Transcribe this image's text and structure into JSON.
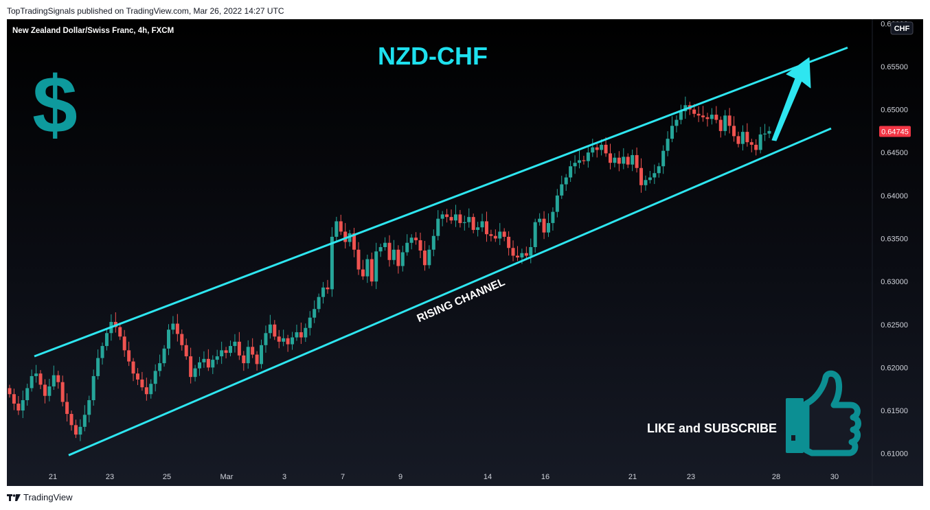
{
  "header": {
    "published_text": "TopTradingSignals published on TradingView.com, Mar 26, 2022 14:27 UTC"
  },
  "chart": {
    "symbol_text": "New Zealand Dollar/Swiss Franc, 4h, FXCM",
    "pair_title": "NZD-CHF",
    "currency_badge": "CHF",
    "last_price_label": "0.64745",
    "channel_label": "RISING CHANNEL",
    "cta_label": "LIKE and SUBSCRIBE",
    "dollar_glyph": "$"
  },
  "footer": {
    "brand": "TradingView"
  },
  "colors": {
    "up": "#26a69a",
    "down": "#ef5350",
    "channel": "#2ee6f0",
    "accent_teal": "#0e9a9d",
    "price_tag": "#f23645"
  },
  "icons": [
    "dollar-icon",
    "thumbs-up-icon",
    "up-arrow-icon",
    "tradingview-logo-icon"
  ],
  "chart_data": {
    "type": "candlestick",
    "title": "NZD-CHF",
    "subtitle": "New Zealand Dollar/Swiss Franc, 4h, FXCM",
    "xlabel": "",
    "ylabel": "",
    "ylim": [
      0.6075,
      0.6605
    ],
    "y_ticks": [
      "0.61000",
      "0.61500",
      "0.62000",
      "0.62500",
      "0.63000",
      "0.63500",
      "0.64000",
      "0.64500",
      "0.65000",
      "0.65500",
      "0.66000"
    ],
    "x_ticks": [
      "21",
      "23",
      "25",
      "Mar",
      "3",
      "7",
      "9",
      "14",
      "16",
      "21",
      "23",
      "28",
      "30"
    ],
    "grid": false,
    "last_price": 0.64745,
    "channel": {
      "upper": [
        [
          "2022-02-19",
          0.6213
        ],
        [
          "2022-03-29",
          0.6572
        ]
      ],
      "lower": [
        [
          "2022-02-21",
          0.6098
        ],
        [
          "2022-03-28",
          0.6478
        ]
      ]
    },
    "annotations": [
      "RISING CHANNEL",
      "LIKE and SUBSCRIBE"
    ],
    "closes": [
      0.6169,
      0.6158,
      0.615,
      0.6162,
      0.6176,
      0.619,
      0.6193,
      0.618,
      0.6167,
      0.6178,
      0.6191,
      0.6183,
      0.616,
      0.6146,
      0.6133,
      0.6122,
      0.6131,
      0.6145,
      0.6162,
      0.619,
      0.6211,
      0.6225,
      0.624,
      0.6253,
      0.6247,
      0.6236,
      0.622,
      0.6207,
      0.6193,
      0.6186,
      0.6177,
      0.6169,
      0.6181,
      0.6196,
      0.6205,
      0.6222,
      0.6244,
      0.6251,
      0.6239,
      0.6226,
      0.6213,
      0.6189,
      0.6199,
      0.6206,
      0.621,
      0.62,
      0.6209,
      0.6213,
      0.622,
      0.6217,
      0.6225,
      0.623,
      0.6214,
      0.6205,
      0.6224,
      0.6215,
      0.6204,
      0.6226,
      0.624,
      0.625,
      0.6236,
      0.623,
      0.6234,
      0.6227,
      0.6235,
      0.6241,
      0.6235,
      0.6246,
      0.6258,
      0.6268,
      0.6282,
      0.6293,
      0.6291,
      0.6352,
      0.637,
      0.6358,
      0.6346,
      0.6356,
      0.6337,
      0.6314,
      0.6306,
      0.6326,
      0.63,
      0.6335,
      0.634,
      0.6345,
      0.6325,
      0.6337,
      0.6318,
      0.6334,
      0.6345,
      0.6351,
      0.6348,
      0.6336,
      0.6319,
      0.6337,
      0.6353,
      0.6373,
      0.6378,
      0.6375,
      0.6371,
      0.6378,
      0.6368,
      0.6369,
      0.6375,
      0.636,
      0.6363,
      0.637,
      0.6355,
      0.6353,
      0.635,
      0.6358,
      0.6352,
      0.6339,
      0.633,
      0.6328,
      0.6333,
      0.633,
      0.634,
      0.6369,
      0.6373,
      0.6357,
      0.6368,
      0.6381,
      0.64,
      0.6413,
      0.6421,
      0.6434,
      0.6438,
      0.6441,
      0.644,
      0.645,
      0.6456,
      0.6453,
      0.6459,
      0.6449,
      0.6438,
      0.6444,
      0.6437,
      0.6445,
      0.6436,
      0.6447,
      0.6432,
      0.6412,
      0.6418,
      0.6421,
      0.6426,
      0.6434,
      0.6452,
      0.6466,
      0.6481,
      0.6488,
      0.6498,
      0.6505,
      0.65,
      0.6495,
      0.6493,
      0.6491,
      0.6489,
      0.6494,
      0.6488,
      0.6475,
      0.6493,
      0.6481,
      0.6469,
      0.646,
      0.6474,
      0.6462,
      0.6459,
      0.6453,
      0.6471,
      0.6472,
      0.6475
    ]
  }
}
